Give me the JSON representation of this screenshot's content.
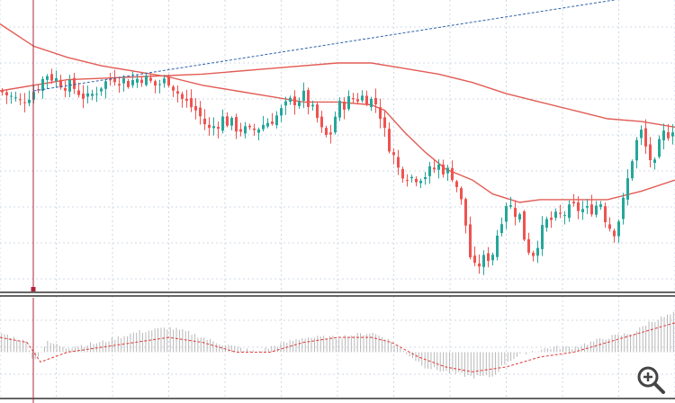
{
  "colors": {
    "background": "#ffffff",
    "grid": "#cfd8e6",
    "bull": "#26a69a",
    "bear": "#ef5350",
    "ma": "#e25c55",
    "trendline": "#2d62a8",
    "crosshair": "#b0243a",
    "separator": "#333333",
    "histogram": "#b8b8b8",
    "signal": "#e04848",
    "zoom_icon": "#444444"
  },
  "icons": {
    "zoom": "zoom-in-icon"
  },
  "chart_data": [
    {
      "type": "candlestick",
      "title": "",
      "xlabel": "",
      "ylabel": "",
      "x_range": [
        0,
        100
      ],
      "ylim": [
        0,
        100
      ],
      "grid": true,
      "legend": "none",
      "price_path": [
        [
          0,
          70
        ],
        [
          3,
          66
        ],
        [
          5,
          70
        ],
        [
          7,
          76
        ],
        [
          9,
          73
        ],
        [
          11,
          71
        ],
        [
          13,
          67
        ],
        [
          15,
          72
        ],
        [
          17,
          75
        ],
        [
          19,
          73
        ],
        [
          21,
          75
        ],
        [
          23,
          72
        ],
        [
          25,
          74
        ],
        [
          27,
          67
        ],
        [
          29,
          63
        ],
        [
          31,
          56
        ],
        [
          33,
          60
        ],
        [
          35,
          57
        ],
        [
          37,
          55
        ],
        [
          39,
          58
        ],
        [
          41,
          61
        ],
        [
          43,
          66
        ],
        [
          45,
          68
        ],
        [
          47,
          60
        ],
        [
          48,
          53
        ],
        [
          49,
          55
        ],
        [
          50,
          64
        ],
        [
          52,
          67
        ],
        [
          54,
          68
        ],
        [
          56,
          65
        ],
        [
          57,
          55
        ],
        [
          59,
          42
        ],
        [
          61,
          39
        ],
        [
          63,
          40
        ],
        [
          65,
          43
        ],
        [
          67,
          40
        ],
        [
          68,
          34
        ],
        [
          69,
          22
        ],
        [
          70,
          5
        ],
        [
          71,
          8
        ],
        [
          73,
          12
        ],
        [
          74,
          22
        ],
        [
          75,
          30
        ],
        [
          77,
          25
        ],
        [
          78,
          14
        ],
        [
          79,
          12
        ],
        [
          80,
          18
        ],
        [
          81,
          23
        ],
        [
          83,
          25
        ],
        [
          85,
          28
        ],
        [
          87,
          27
        ],
        [
          89,
          30
        ],
        [
          90,
          22
        ],
        [
          91,
          20
        ],
        [
          92,
          26
        ],
        [
          93,
          38
        ],
        [
          94,
          50
        ],
        [
          95,
          55
        ],
        [
          96,
          47
        ],
        [
          97,
          43
        ],
        [
          98,
          54
        ],
        [
          99,
          55
        ],
        [
          100,
          58
        ]
      ],
      "ma_fast": [
        [
          0,
          94
        ],
        [
          5,
          86
        ],
        [
          10,
          82
        ],
        [
          15,
          79
        ],
        [
          20,
          77
        ],
        [
          25,
          75
        ],
        [
          30,
          72
        ],
        [
          35,
          70
        ],
        [
          40,
          68
        ],
        [
          45,
          66
        ],
        [
          50,
          66
        ],
        [
          55,
          65
        ],
        [
          57,
          63
        ],
        [
          60,
          55
        ],
        [
          63,
          48
        ],
        [
          66,
          42
        ],
        [
          70,
          38
        ],
        [
          73,
          33
        ],
        [
          77,
          30
        ],
        [
          80,
          31
        ],
        [
          85,
          31
        ],
        [
          90,
          31
        ],
        [
          95,
          34
        ],
        [
          100,
          38
        ]
      ],
      "ma_slow": [
        [
          0,
          70
        ],
        [
          10,
          74
        ],
        [
          20,
          75
        ],
        [
          30,
          76
        ],
        [
          40,
          78
        ],
        [
          50,
          80
        ],
        [
          55,
          80
        ],
        [
          60,
          78
        ],
        [
          65,
          76
        ],
        [
          70,
          73
        ],
        [
          75,
          69
        ],
        [
          80,
          66
        ],
        [
          85,
          63
        ],
        [
          90,
          60
        ],
        [
          95,
          59
        ],
        [
          100,
          57
        ]
      ],
      "trendline": [
        [
          5,
          70
        ],
        [
          100,
          106
        ]
      ],
      "crosshair_x": 5
    },
    {
      "type": "bar",
      "title": "",
      "xlabel": "",
      "ylabel": "",
      "ylim": [
        -10,
        10
      ],
      "grid": true,
      "legend": "none",
      "histogram_path": [
        [
          0,
          4
        ],
        [
          4,
          2
        ],
        [
          5,
          -2
        ],
        [
          7,
          2
        ],
        [
          10,
          1
        ],
        [
          15,
          2
        ],
        [
          20,
          4
        ],
        [
          25,
          5
        ],
        [
          28,
          4
        ],
        [
          32,
          2
        ],
        [
          35,
          1
        ],
        [
          38,
          0
        ],
        [
          40,
          1
        ],
        [
          45,
          3
        ],
        [
          50,
          3
        ],
        [
          55,
          4
        ],
        [
          57,
          3
        ],
        [
          60,
          0
        ],
        [
          63,
          -3
        ],
        [
          66,
          -4
        ],
        [
          70,
          -5
        ],
        [
          73,
          -5
        ],
        [
          75,
          -2
        ],
        [
          78,
          0
        ],
        [
          82,
          1
        ],
        [
          85,
          1
        ],
        [
          90,
          3
        ],
        [
          94,
          4
        ],
        [
          96,
          6
        ],
        [
          100,
          8
        ]
      ],
      "signal_path": [
        [
          0,
          3
        ],
        [
          4,
          2
        ],
        [
          6,
          -2
        ],
        [
          10,
          0
        ],
        [
          15,
          1
        ],
        [
          20,
          2
        ],
        [
          25,
          3
        ],
        [
          30,
          2
        ],
        [
          35,
          0
        ],
        [
          40,
          0
        ],
        [
          45,
          2
        ],
        [
          50,
          3
        ],
        [
          55,
          3
        ],
        [
          58,
          2
        ],
        [
          62,
          -1
        ],
        [
          66,
          -3
        ],
        [
          70,
          -4
        ],
        [
          75,
          -3
        ],
        [
          80,
          -1
        ],
        [
          85,
          0
        ],
        [
          90,
          2
        ],
        [
          95,
          4
        ],
        [
          100,
          6
        ]
      ]
    }
  ]
}
